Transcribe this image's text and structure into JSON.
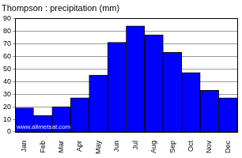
{
  "chart_data": {
    "type": "bar",
    "title": "Thompson : precipitation (mm)",
    "annotation": "www.allmetsat.com",
    "categories": [
      "Jan",
      "Feb",
      "Mar",
      "Apr",
      "May",
      "Jun",
      "Jul",
      "Aug",
      "Sep",
      "Oct",
      "Nov",
      "Dec"
    ],
    "values": [
      19,
      13,
      20,
      27,
      45,
      71,
      84,
      77,
      63,
      47,
      33,
      27
    ],
    "color": "#0000ff",
    "ylim": [
      0,
      90
    ],
    "yticks": [
      0,
      10,
      20,
      30,
      40,
      50,
      60,
      70,
      80,
      90
    ],
    "grid": true
  }
}
